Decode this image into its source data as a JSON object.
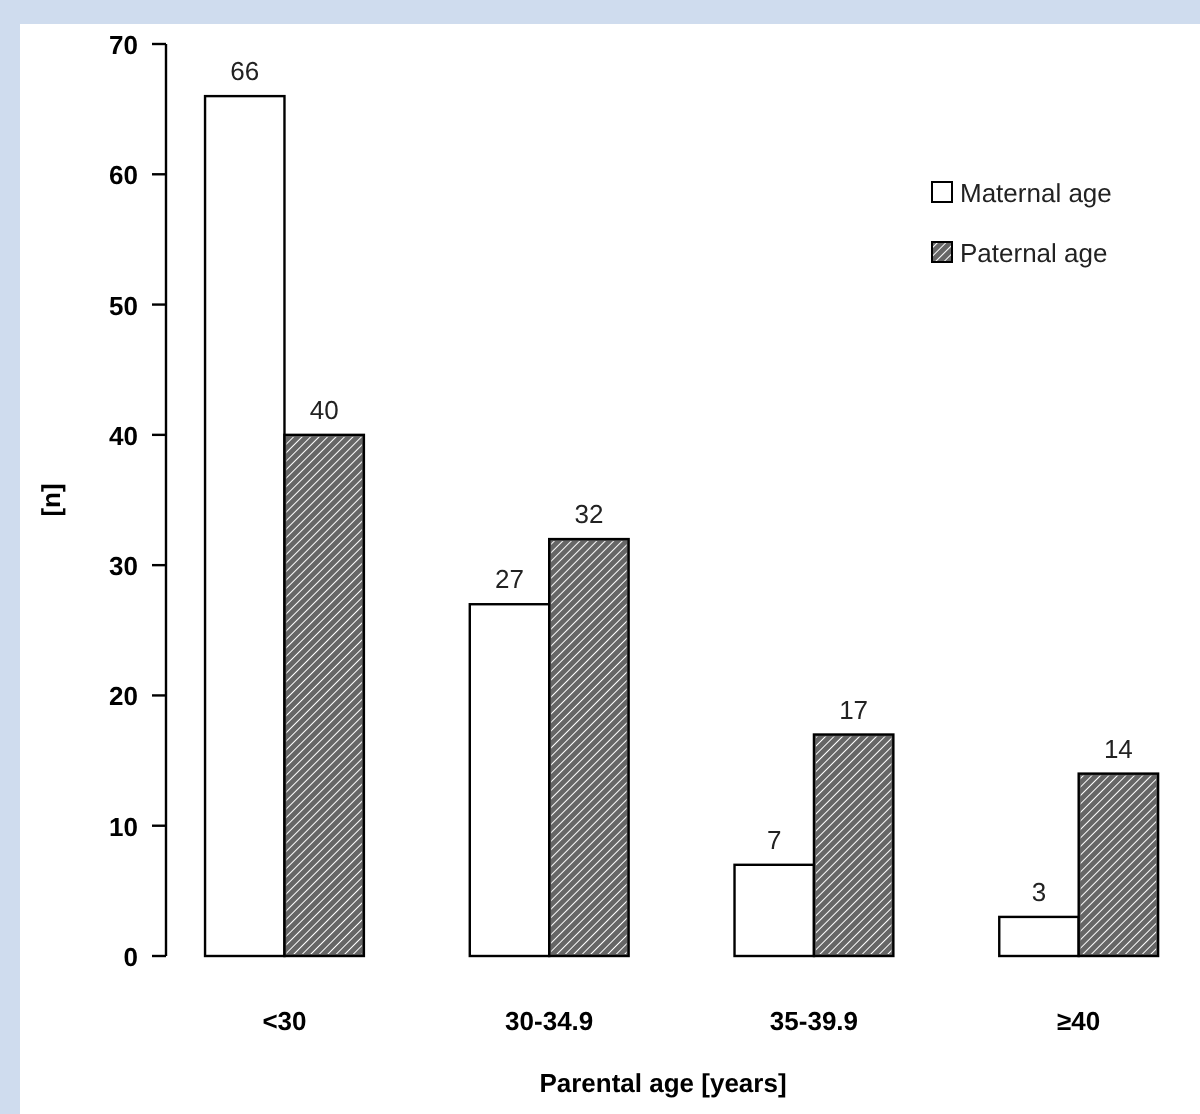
{
  "chart_data": {
    "type": "bar",
    "xlabel": "Parental age [years]",
    "ylabel": "[n]",
    "categories": [
      "<30",
      "30-34.9",
      "35-39.9",
      "≥40"
    ],
    "series": [
      {
        "name": "Maternal age",
        "color": "#ffffff",
        "values": [
          66,
          27,
          7,
          3
        ]
      },
      {
        "name": "Paternal age",
        "color": "#666666",
        "values": [
          40,
          32,
          17,
          14
        ]
      }
    ],
    "ylim": [
      0,
      70
    ],
    "yticks": [
      0,
      10,
      20,
      30,
      40,
      50,
      60,
      70
    ],
    "data_labels": true,
    "legend": "top right",
    "grid": false
  }
}
